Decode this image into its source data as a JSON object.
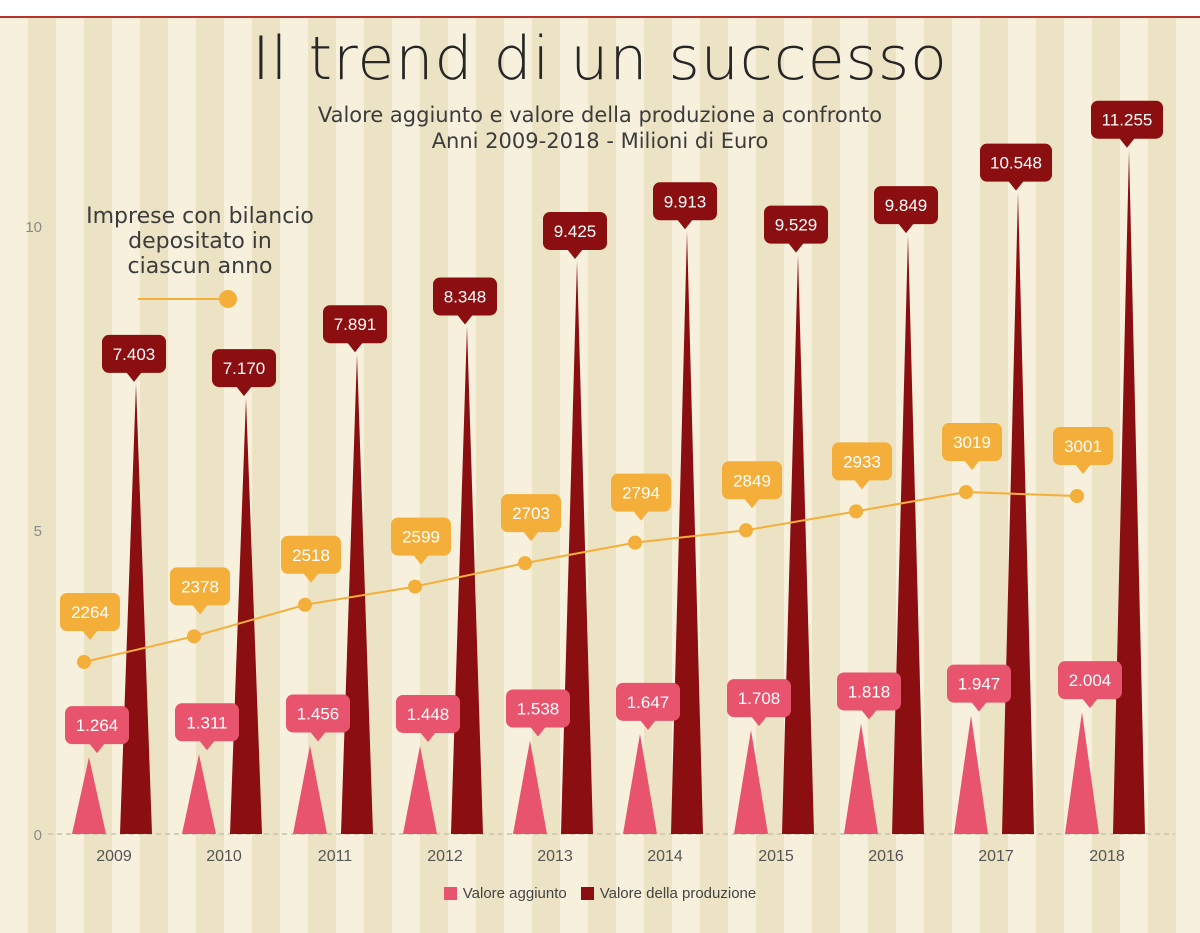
{
  "title": "Il trend di un successo",
  "subtitle_line1": "Valore aggiunto e valore della produzione a confronto",
  "subtitle_line2": "Anni 2009-2018 - Milioni di Euro",
  "line_legend": [
    "Imprese con bilancio",
    "depositato in",
    "ciascun anno"
  ],
  "colors": {
    "valore_aggiunto": "#e8546e",
    "valore_produzione": "#8b0e10",
    "imprese": "#f4ae3a",
    "background": "#f6f0dc",
    "stripe": "#ece3c5"
  },
  "chart_data": {
    "type": "bar",
    "title": "Il trend di un successo",
    "categories": [
      "2009",
      "2010",
      "2011",
      "2012",
      "2013",
      "2014",
      "2015",
      "2016",
      "2017",
      "2018"
    ],
    "ylim": [
      0,
      10
    ],
    "yticks": [
      "0",
      "5",
      "10"
    ],
    "series": [
      {
        "name": "Valore aggiunto",
        "values": [
          1.264,
          1.311,
          1.456,
          1.448,
          1.538,
          1.647,
          1.708,
          1.818,
          1.947,
          2.004
        ],
        "labels": [
          "1.264",
          "1.311",
          "1.456",
          "1.448",
          "1.538",
          "1.647",
          "1.708",
          "1.818",
          "1.947",
          "2.004"
        ]
      },
      {
        "name": "Valore della produzione",
        "values": [
          7.403,
          7.17,
          7.891,
          8.348,
          9.425,
          9.913,
          9.529,
          9.849,
          10.548,
          11.255
        ],
        "labels": [
          "7.403",
          "7.170",
          "7.891",
          "8.348",
          "9.425",
          "9.913",
          "9.529",
          "9.849",
          "10.548",
          "11.255"
        ]
      },
      {
        "name": "Imprese con bilancio depositato in ciascun anno",
        "type": "line",
        "values": [
          2264,
          2378,
          2518,
          2599,
          2703,
          2794,
          2849,
          2933,
          3019,
          3001
        ],
        "labels": [
          "2264",
          "2378",
          "2518",
          "2599",
          "2703",
          "2794",
          "2849",
          "2933",
          "3019",
          "3001"
        ]
      }
    ],
    "legend": [
      "Valore aggiunto",
      "Valore della produzione"
    ]
  }
}
